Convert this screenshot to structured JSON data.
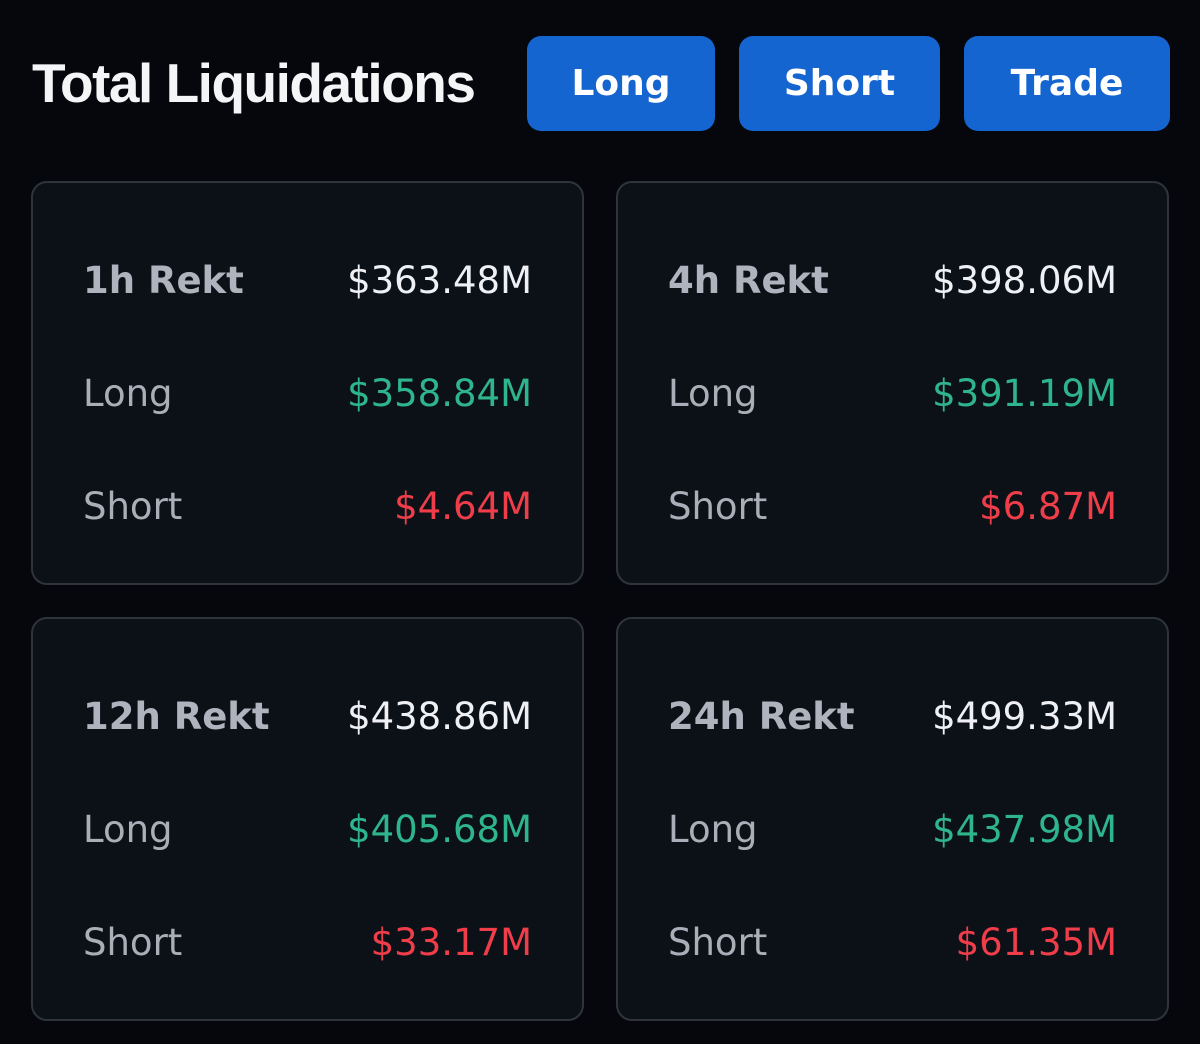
{
  "header": {
    "title": "Total Liquidations",
    "buttons": {
      "long": "Long",
      "short": "Short",
      "trade": "Trade"
    }
  },
  "colors": {
    "background": "#05070d",
    "card_background": "#0c1118",
    "button": "#1565d0",
    "long_value": "#2fb58c",
    "short_value": "#ef3d4a"
  },
  "cards": [
    {
      "title": "1h Rekt",
      "total": "$363.48M",
      "long_label": "Long",
      "long": "$358.84M",
      "short_label": "Short",
      "short": "$4.64M"
    },
    {
      "title": "4h Rekt",
      "total": "$398.06M",
      "long_label": "Long",
      "long": "$391.19M",
      "short_label": "Short",
      "short": "$6.87M"
    },
    {
      "title": "12h Rekt",
      "total": "$438.86M",
      "long_label": "Long",
      "long": "$405.68M",
      "short_label": "Short",
      "short": "$33.17M"
    },
    {
      "title": "24h Rekt",
      "total": "$499.33M",
      "long_label": "Long",
      "long": "$437.98M",
      "short_label": "Short",
      "short": "$61.35M"
    }
  ]
}
